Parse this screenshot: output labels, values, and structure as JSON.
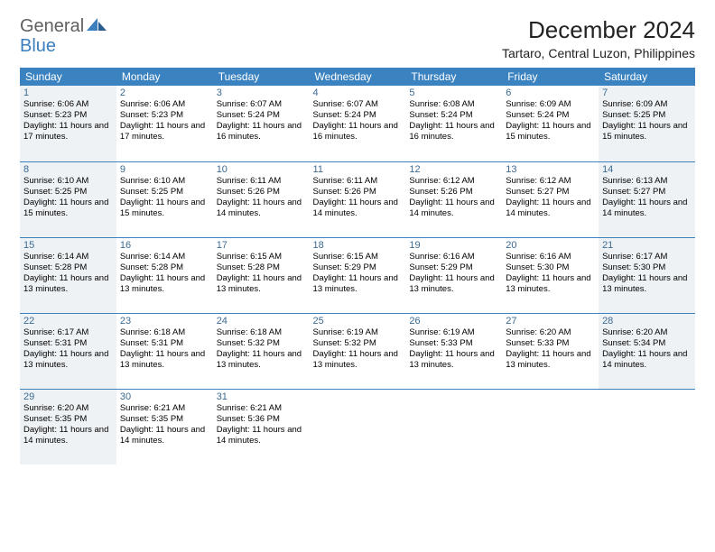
{
  "logo": {
    "part1": "General",
    "part2": "Blue"
  },
  "title": "December 2024",
  "location": "Tartaro, Central Luzon, Philippines",
  "colors": {
    "header_bg": "#3b83c0",
    "header_text": "#ffffff",
    "rule": "#3b83c0",
    "shaded_bg": "#eef2f5",
    "daynum": "#3b6b94",
    "logo_gray": "#606060",
    "logo_blue": "#3b7fbf"
  },
  "weekdays": [
    "Sunday",
    "Monday",
    "Tuesday",
    "Wednesday",
    "Thursday",
    "Friday",
    "Saturday"
  ],
  "weeks": [
    [
      {
        "day": "1",
        "shaded": true,
        "sunrise": "Sunrise: 6:06 AM",
        "sunset": "Sunset: 5:23 PM",
        "daylight": "Daylight: 11 hours and 17 minutes."
      },
      {
        "day": "2",
        "shaded": false,
        "sunrise": "Sunrise: 6:06 AM",
        "sunset": "Sunset: 5:23 PM",
        "daylight": "Daylight: 11 hours and 17 minutes."
      },
      {
        "day": "3",
        "shaded": false,
        "sunrise": "Sunrise: 6:07 AM",
        "sunset": "Sunset: 5:24 PM",
        "daylight": "Daylight: 11 hours and 16 minutes."
      },
      {
        "day": "4",
        "shaded": false,
        "sunrise": "Sunrise: 6:07 AM",
        "sunset": "Sunset: 5:24 PM",
        "daylight": "Daylight: 11 hours and 16 minutes."
      },
      {
        "day": "5",
        "shaded": false,
        "sunrise": "Sunrise: 6:08 AM",
        "sunset": "Sunset: 5:24 PM",
        "daylight": "Daylight: 11 hours and 16 minutes."
      },
      {
        "day": "6",
        "shaded": false,
        "sunrise": "Sunrise: 6:09 AM",
        "sunset": "Sunset: 5:24 PM",
        "daylight": "Daylight: 11 hours and 15 minutes."
      },
      {
        "day": "7",
        "shaded": true,
        "sunrise": "Sunrise: 6:09 AM",
        "sunset": "Sunset: 5:25 PM",
        "daylight": "Daylight: 11 hours and 15 minutes."
      }
    ],
    [
      {
        "day": "8",
        "shaded": true,
        "sunrise": "Sunrise: 6:10 AM",
        "sunset": "Sunset: 5:25 PM",
        "daylight": "Daylight: 11 hours and 15 minutes."
      },
      {
        "day": "9",
        "shaded": false,
        "sunrise": "Sunrise: 6:10 AM",
        "sunset": "Sunset: 5:25 PM",
        "daylight": "Daylight: 11 hours and 15 minutes."
      },
      {
        "day": "10",
        "shaded": false,
        "sunrise": "Sunrise: 6:11 AM",
        "sunset": "Sunset: 5:26 PM",
        "daylight": "Daylight: 11 hours and 14 minutes."
      },
      {
        "day": "11",
        "shaded": false,
        "sunrise": "Sunrise: 6:11 AM",
        "sunset": "Sunset: 5:26 PM",
        "daylight": "Daylight: 11 hours and 14 minutes."
      },
      {
        "day": "12",
        "shaded": false,
        "sunrise": "Sunrise: 6:12 AM",
        "sunset": "Sunset: 5:26 PM",
        "daylight": "Daylight: 11 hours and 14 minutes."
      },
      {
        "day": "13",
        "shaded": false,
        "sunrise": "Sunrise: 6:12 AM",
        "sunset": "Sunset: 5:27 PM",
        "daylight": "Daylight: 11 hours and 14 minutes."
      },
      {
        "day": "14",
        "shaded": true,
        "sunrise": "Sunrise: 6:13 AM",
        "sunset": "Sunset: 5:27 PM",
        "daylight": "Daylight: 11 hours and 14 minutes."
      }
    ],
    [
      {
        "day": "15",
        "shaded": true,
        "sunrise": "Sunrise: 6:14 AM",
        "sunset": "Sunset: 5:28 PM",
        "daylight": "Daylight: 11 hours and 13 minutes."
      },
      {
        "day": "16",
        "shaded": false,
        "sunrise": "Sunrise: 6:14 AM",
        "sunset": "Sunset: 5:28 PM",
        "daylight": "Daylight: 11 hours and 13 minutes."
      },
      {
        "day": "17",
        "shaded": false,
        "sunrise": "Sunrise: 6:15 AM",
        "sunset": "Sunset: 5:28 PM",
        "daylight": "Daylight: 11 hours and 13 minutes."
      },
      {
        "day": "18",
        "shaded": false,
        "sunrise": "Sunrise: 6:15 AM",
        "sunset": "Sunset: 5:29 PM",
        "daylight": "Daylight: 11 hours and 13 minutes."
      },
      {
        "day": "19",
        "shaded": false,
        "sunrise": "Sunrise: 6:16 AM",
        "sunset": "Sunset: 5:29 PM",
        "daylight": "Daylight: 11 hours and 13 minutes."
      },
      {
        "day": "20",
        "shaded": false,
        "sunrise": "Sunrise: 6:16 AM",
        "sunset": "Sunset: 5:30 PM",
        "daylight": "Daylight: 11 hours and 13 minutes."
      },
      {
        "day": "21",
        "shaded": true,
        "sunrise": "Sunrise: 6:17 AM",
        "sunset": "Sunset: 5:30 PM",
        "daylight": "Daylight: 11 hours and 13 minutes."
      }
    ],
    [
      {
        "day": "22",
        "shaded": true,
        "sunrise": "Sunrise: 6:17 AM",
        "sunset": "Sunset: 5:31 PM",
        "daylight": "Daylight: 11 hours and 13 minutes."
      },
      {
        "day": "23",
        "shaded": false,
        "sunrise": "Sunrise: 6:18 AM",
        "sunset": "Sunset: 5:31 PM",
        "daylight": "Daylight: 11 hours and 13 minutes."
      },
      {
        "day": "24",
        "shaded": false,
        "sunrise": "Sunrise: 6:18 AM",
        "sunset": "Sunset: 5:32 PM",
        "daylight": "Daylight: 11 hours and 13 minutes."
      },
      {
        "day": "25",
        "shaded": false,
        "sunrise": "Sunrise: 6:19 AM",
        "sunset": "Sunset: 5:32 PM",
        "daylight": "Daylight: 11 hours and 13 minutes."
      },
      {
        "day": "26",
        "shaded": false,
        "sunrise": "Sunrise: 6:19 AM",
        "sunset": "Sunset: 5:33 PM",
        "daylight": "Daylight: 11 hours and 13 minutes."
      },
      {
        "day": "27",
        "shaded": false,
        "sunrise": "Sunrise: 6:20 AM",
        "sunset": "Sunset: 5:33 PM",
        "daylight": "Daylight: 11 hours and 13 minutes."
      },
      {
        "day": "28",
        "shaded": true,
        "sunrise": "Sunrise: 6:20 AM",
        "sunset": "Sunset: 5:34 PM",
        "daylight": "Daylight: 11 hours and 14 minutes."
      }
    ],
    [
      {
        "day": "29",
        "shaded": true,
        "sunrise": "Sunrise: 6:20 AM",
        "sunset": "Sunset: 5:35 PM",
        "daylight": "Daylight: 11 hours and 14 minutes."
      },
      {
        "day": "30",
        "shaded": false,
        "sunrise": "Sunrise: 6:21 AM",
        "sunset": "Sunset: 5:35 PM",
        "daylight": "Daylight: 11 hours and 14 minutes."
      },
      {
        "day": "31",
        "shaded": false,
        "sunrise": "Sunrise: 6:21 AM",
        "sunset": "Sunset: 5:36 PM",
        "daylight": "Daylight: 11 hours and 14 minutes."
      },
      null,
      null,
      null,
      null
    ]
  ]
}
